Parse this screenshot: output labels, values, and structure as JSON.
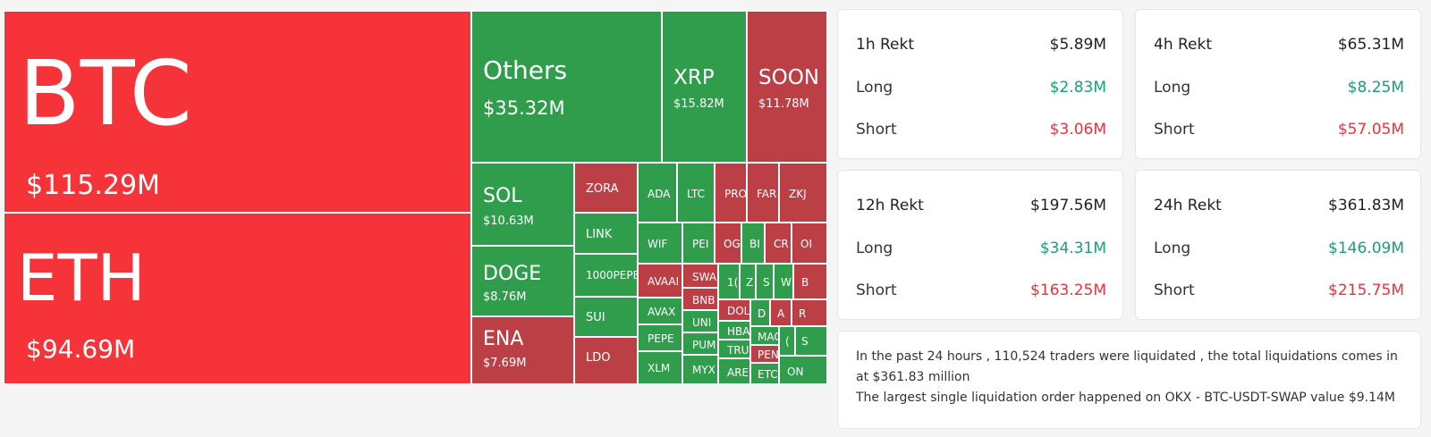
{
  "treemap": [
    {
      "symbol": "BTC",
      "value": "$115.29M",
      "color": "#f7333a"
    },
    {
      "symbol": "ETH",
      "value": "$94.69M",
      "color": "#f7333a"
    },
    {
      "symbol": "Others",
      "value": "$35.32M",
      "color": "#2f9d4b"
    },
    {
      "symbol": "XRP",
      "value": "$15.82M",
      "color": "#2f9d4b"
    },
    {
      "symbol": "SOON",
      "value": "$11.78M",
      "color": "#bc3f45"
    },
    {
      "symbol": "SOL",
      "value": "$10.63M",
      "color": "#2f9d4b"
    },
    {
      "symbol": "DOGE",
      "value": "$8.76M",
      "color": "#2f9d4b"
    },
    {
      "symbol": "ENA",
      "value": "$7.69M",
      "color": "#bc3f45"
    },
    {
      "symbol": "ZORA",
      "color": "#bc3f45"
    },
    {
      "symbol": "LINK",
      "color": "#2f9d4b"
    },
    {
      "symbol": "1000PEPE",
      "color": "#2f9d4b"
    },
    {
      "symbol": "SUI",
      "color": "#2f9d4b"
    },
    {
      "symbol": "LDO",
      "color": "#bc3f45"
    },
    {
      "symbol": "ADA",
      "color": "#2f9d4b"
    },
    {
      "symbol": "LTC",
      "color": "#2f9d4b"
    },
    {
      "symbol": "PRO",
      "color": "#bc3f45"
    },
    {
      "symbol": "FAR",
      "color": "#bc3f45"
    },
    {
      "symbol": "ZKJ",
      "color": "#bc3f45"
    },
    {
      "symbol": "WIF",
      "color": "#2f9d4b"
    },
    {
      "symbol": "PEI",
      "color": "#2f9d4b"
    },
    {
      "symbol": "OG",
      "color": "#bc3f45"
    },
    {
      "symbol": "BI",
      "color": "#2f9d4b"
    },
    {
      "symbol": "CR",
      "color": "#bc3f45"
    },
    {
      "symbol": "OI",
      "color": "#bc3f45"
    },
    {
      "symbol": "AVAAI",
      "color": "#bc3f45"
    },
    {
      "symbol": "SWA",
      "color": "#bc3f45"
    },
    {
      "symbol": "1(",
      "color": "#2f9d4b"
    },
    {
      "symbol": "Z",
      "color": "#2f9d4b"
    },
    {
      "symbol": "S",
      "color": "#2f9d4b"
    },
    {
      "symbol": "W",
      "color": "#2f9d4b"
    },
    {
      "symbol": "B",
      "color": "#bc3f45"
    },
    {
      "symbol": "AVAX",
      "color": "#2f9d4b"
    },
    {
      "symbol": "BNB",
      "color": "#bc3f45"
    },
    {
      "symbol": "DOL",
      "color": "#bc3f45"
    },
    {
      "symbol": "D",
      "color": "#2f9d4b"
    },
    {
      "symbol": "A",
      "color": "#bc3f45"
    },
    {
      "symbol": "R",
      "color": "#bc3f45"
    },
    {
      "symbol": "PEPE",
      "color": "#2f9d4b"
    },
    {
      "symbol": "UNI",
      "color": "#2f9d4b"
    },
    {
      "symbol": "HBA",
      "color": "#2f9d4b"
    },
    {
      "symbol": "MAC",
      "color": "#2f9d4b"
    },
    {
      "symbol": "(",
      "color": "#2f9d4b"
    },
    {
      "symbol": "S",
      "color": "#2f9d4b"
    },
    {
      "symbol": "PUM",
      "color": "#2f9d4b"
    },
    {
      "symbol": "TRU",
      "color": "#2f9d4b"
    },
    {
      "symbol": "PEN",
      "color": "#bc3f45"
    },
    {
      "symbol": "XLM",
      "color": "#2f9d4b"
    },
    {
      "symbol": "MYX",
      "color": "#2f9d4b"
    },
    {
      "symbol": "ARE",
      "color": "#2f9d4b"
    },
    {
      "symbol": "ETC",
      "color": "#2f9d4b"
    },
    {
      "symbol": "ON",
      "color": "#2f9d4b"
    }
  ],
  "rekt": [
    {
      "title": "1h Rekt",
      "total": "$5.89M",
      "long_label": "Long",
      "long": "$2.83M",
      "short_label": "Short",
      "short": "$3.06M"
    },
    {
      "title": "4h Rekt",
      "total": "$65.31M",
      "long_label": "Long",
      "long": "$8.25M",
      "short_label": "Short",
      "short": "$57.05M"
    },
    {
      "title": "12h Rekt",
      "total": "$197.56M",
      "long_label": "Long",
      "long": "$34.31M",
      "short_label": "Short",
      "short": "$163.25M"
    },
    {
      "title": "24h Rekt",
      "total": "$361.83M",
      "long_label": "Long",
      "long": "$146.09M",
      "short_label": "Short",
      "short": "$215.75M"
    }
  ],
  "summary": {
    "line1": "In the past 24 hours , 110,524 traders were liquidated , the total liquidations comes in",
    "line2": "at $361.83 million",
    "line3": "The largest single liquidation order happened on OKX - BTC-USDT-SWAP value $9.14M"
  },
  "colors": {
    "long": "#14a07a",
    "short": "#f0323c",
    "green_tile": "#2f9d4b",
    "red_tile": "#f7333a",
    "dark_red_tile": "#bc3f45"
  }
}
